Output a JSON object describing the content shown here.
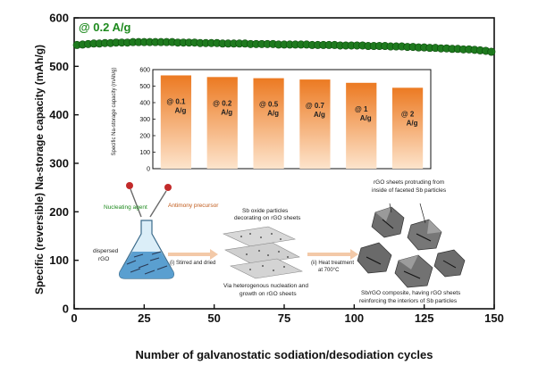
{
  "chart_data": [
    {
      "type": "scatter",
      "xlabel": "Number of galvanostatic sodiation/desodiation cycles",
      "ylabel": "Specific (reversible) Na-storage capacity (mAh/g)",
      "xlim": [
        0,
        150
      ],
      "ylim": [
        0,
        600
      ],
      "xticks": [
        0,
        25,
        50,
        75,
        100,
        125,
        150
      ],
      "yticks": [
        0,
        100,
        200,
        300,
        400,
        500,
        600
      ],
      "annotation": "@ 0.2 A/g",
      "series": [
        {
          "color": "#1e7a1e",
          "x": [
            1,
            3,
            5,
            7,
            9,
            11,
            13,
            15,
            17,
            19,
            21,
            23,
            25,
            27,
            29,
            31,
            33,
            35,
            37,
            39,
            41,
            43,
            45,
            47,
            49,
            51,
            53,
            55,
            57,
            59,
            61,
            63,
            65,
            67,
            69,
            71,
            73,
            75,
            77,
            79,
            81,
            83,
            85,
            87,
            89,
            91,
            93,
            95,
            97,
            99,
            101,
            103,
            105,
            107,
            109,
            111,
            113,
            115,
            117,
            119,
            121,
            123,
            125,
            127,
            129,
            131,
            133,
            135,
            137,
            139,
            141,
            143,
            145,
            147,
            149
          ],
          "y": [
            544,
            545,
            546,
            547,
            547,
            548,
            548,
            549,
            549,
            549,
            550,
            550,
            550,
            550,
            550,
            550,
            550,
            550,
            549,
            549,
            549,
            549,
            548,
            548,
            548,
            548,
            547,
            547,
            547,
            547,
            547,
            546,
            546,
            546,
            546,
            546,
            545,
            545,
            545,
            545,
            545,
            545,
            544,
            544,
            544,
            544,
            544,
            543,
            543,
            543,
            543,
            543,
            542,
            542,
            542,
            542,
            541,
            541,
            541,
            540,
            540,
            539,
            539,
            538,
            538,
            537,
            537,
            536,
            536,
            535,
            535,
            534,
            533,
            532,
            530
          ]
        }
      ]
    },
    {
      "type": "bar",
      "ylabel": "Specific Na-storage capacity (mAh/g)",
      "ylim": [
        0,
        600
      ],
      "yticks": [
        0,
        100,
        200,
        300,
        400,
        500,
        600
      ],
      "categories": [
        "@ 0.1 A/g",
        "@ 0.2 A/g",
        "@ 0.5 A/g",
        "@ 0.7 A/g",
        "@ 1 A/g",
        "@ 2 A/g"
      ],
      "values": [
        565,
        555,
        548,
        540,
        520,
        490
      ],
      "color": "#ef8a35"
    }
  ],
  "schematic": {
    "nucleating_agent": "Nucleating agent",
    "antimony_precursor": "Antimony precursor",
    "dispersed_rgo_line1": "dispersed",
    "dispersed_rgo_line2": "rGO",
    "step1": "(i) Stirred and dried",
    "sb_oxide_line1": "Sb oxide particles",
    "sb_oxide_line2": "decorating on rGO sheets",
    "via_line1": "Via heterogenous nucleation and",
    "via_line2": "growth on rGO sheets",
    "step2_line1": "(ii) Heat treatment",
    "step2_line2": "at 700°C",
    "protruding_line1": "rGO sheets protruding from",
    "protruding_line2": "inside of faceted Sb particles",
    "composite_line1": "Sb/rGO composite, having rGO sheets",
    "composite_line2": "reinforcing the interiors of Sb particles"
  }
}
